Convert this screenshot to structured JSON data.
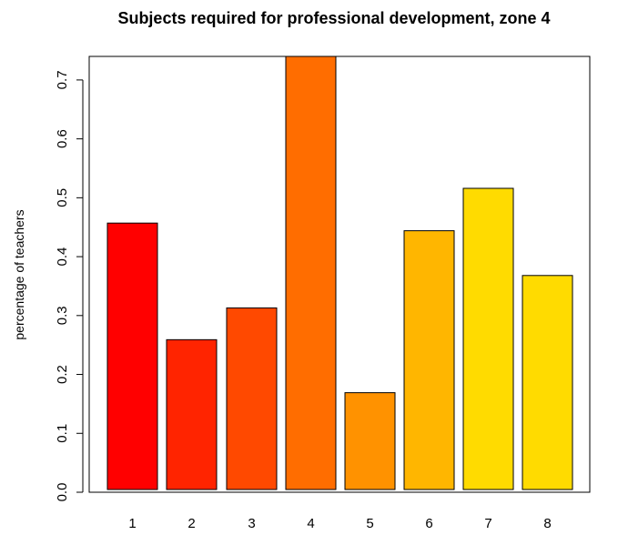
{
  "chart_data": {
    "type": "bar",
    "title": "Subjects required for professional development, zone 4",
    "xlabel": "",
    "ylabel": "percentage of teachers",
    "categories": [
      "1",
      "2",
      "3",
      "4",
      "5",
      "6",
      "7",
      "8"
    ],
    "values": [
      0.457,
      0.259,
      0.313,
      0.74,
      0.169,
      0.444,
      0.516,
      0.368
    ],
    "colors": [
      "#ff0000",
      "#ff2400",
      "#ff4900",
      "#ff6d00",
      "#ff9200",
      "#ffb600",
      "#ffdb00",
      "#ffdb00"
    ],
    "ylim": [
      0,
      0.74
    ],
    "yticks": [
      "0.0",
      "0.1",
      "0.2",
      "0.3",
      "0.4",
      "0.5",
      "0.6",
      "0.7"
    ],
    "ytick_values": [
      0,
      0.1,
      0.2,
      0.3,
      0.4,
      0.5,
      0.6,
      0.7
    ],
    "grid": false,
    "legend": "none"
  }
}
